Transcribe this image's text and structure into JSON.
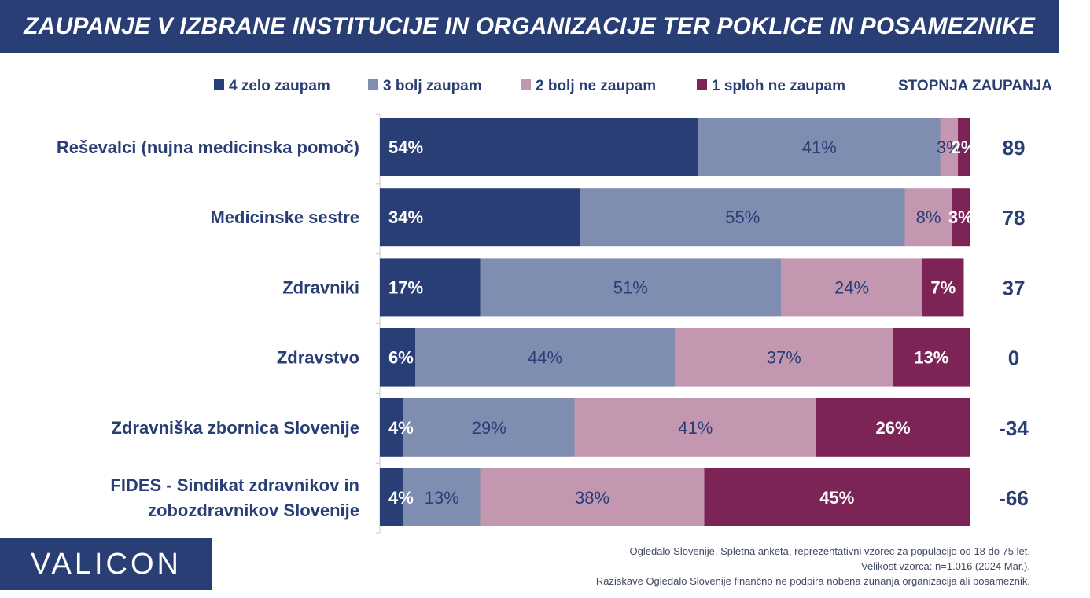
{
  "title": "ZAUPANJE V IZBRANE INSTITUCIJE IN ORGANIZACIJE TER POKLICE IN POSAMEZNIKE",
  "logo": "VALICON",
  "footnote": {
    "line1": "Ogledalo Slovenije. Spletna anketa, reprezentativni vzorec za populacijo od 18 do 75 let.",
    "line2": "Velikost vzorca: n=1.016 (2024 Mar.).",
    "line3": "Raziskave Ogledalo Slovenije finančno ne podpira nobena zunanja organizacija ali posameznik."
  },
  "colors": {
    "title_bg": "#293e74",
    "text": "#293e74",
    "axis": "#c8c8c8"
  },
  "chart_data": {
    "type": "bar",
    "orientation": "horizontal",
    "stacked": true,
    "categories": [
      [
        "Reševalci (nujna medicinska pomoč)"
      ],
      [
        "Medicinske sestre"
      ],
      [
        "Zdravniki"
      ],
      [
        "Zdravstvo"
      ],
      [
        "Zdravniška zbornica Slovenije"
      ],
      [
        "FIDES - Sindikat zdravnikov in",
        "zobozdravnikov Slovenije"
      ]
    ],
    "series": [
      {
        "name": "4 zelo zaupam",
        "color": "#293e74",
        "label_color": "#ffffff",
        "values": [
          54,
          34,
          17,
          6,
          4,
          4
        ]
      },
      {
        "name": "3 bolj zaupam",
        "color": "#7e8db0",
        "label_color": "#293e74",
        "values": [
          41,
          55,
          51,
          44,
          29,
          13
        ]
      },
      {
        "name": "2 bolj ne zaupam",
        "color": "#c497b0",
        "label_color": "#293e74",
        "values": [
          3,
          8,
          24,
          37,
          41,
          38
        ]
      },
      {
        "name": "1 sploh ne zaupam",
        "color": "#7d2456",
        "label_color": "#ffffff",
        "values": [
          2,
          3,
          7,
          13,
          26,
          45
        ]
      }
    ],
    "value_suffix": "%",
    "trust_index": {
      "header": "STOPNJA ZAUPANJA",
      "values": [
        89,
        78,
        37,
        0,
        -34,
        -66
      ]
    },
    "legend_position": "top",
    "xlim": [
      0,
      100
    ],
    "grid": false
  }
}
